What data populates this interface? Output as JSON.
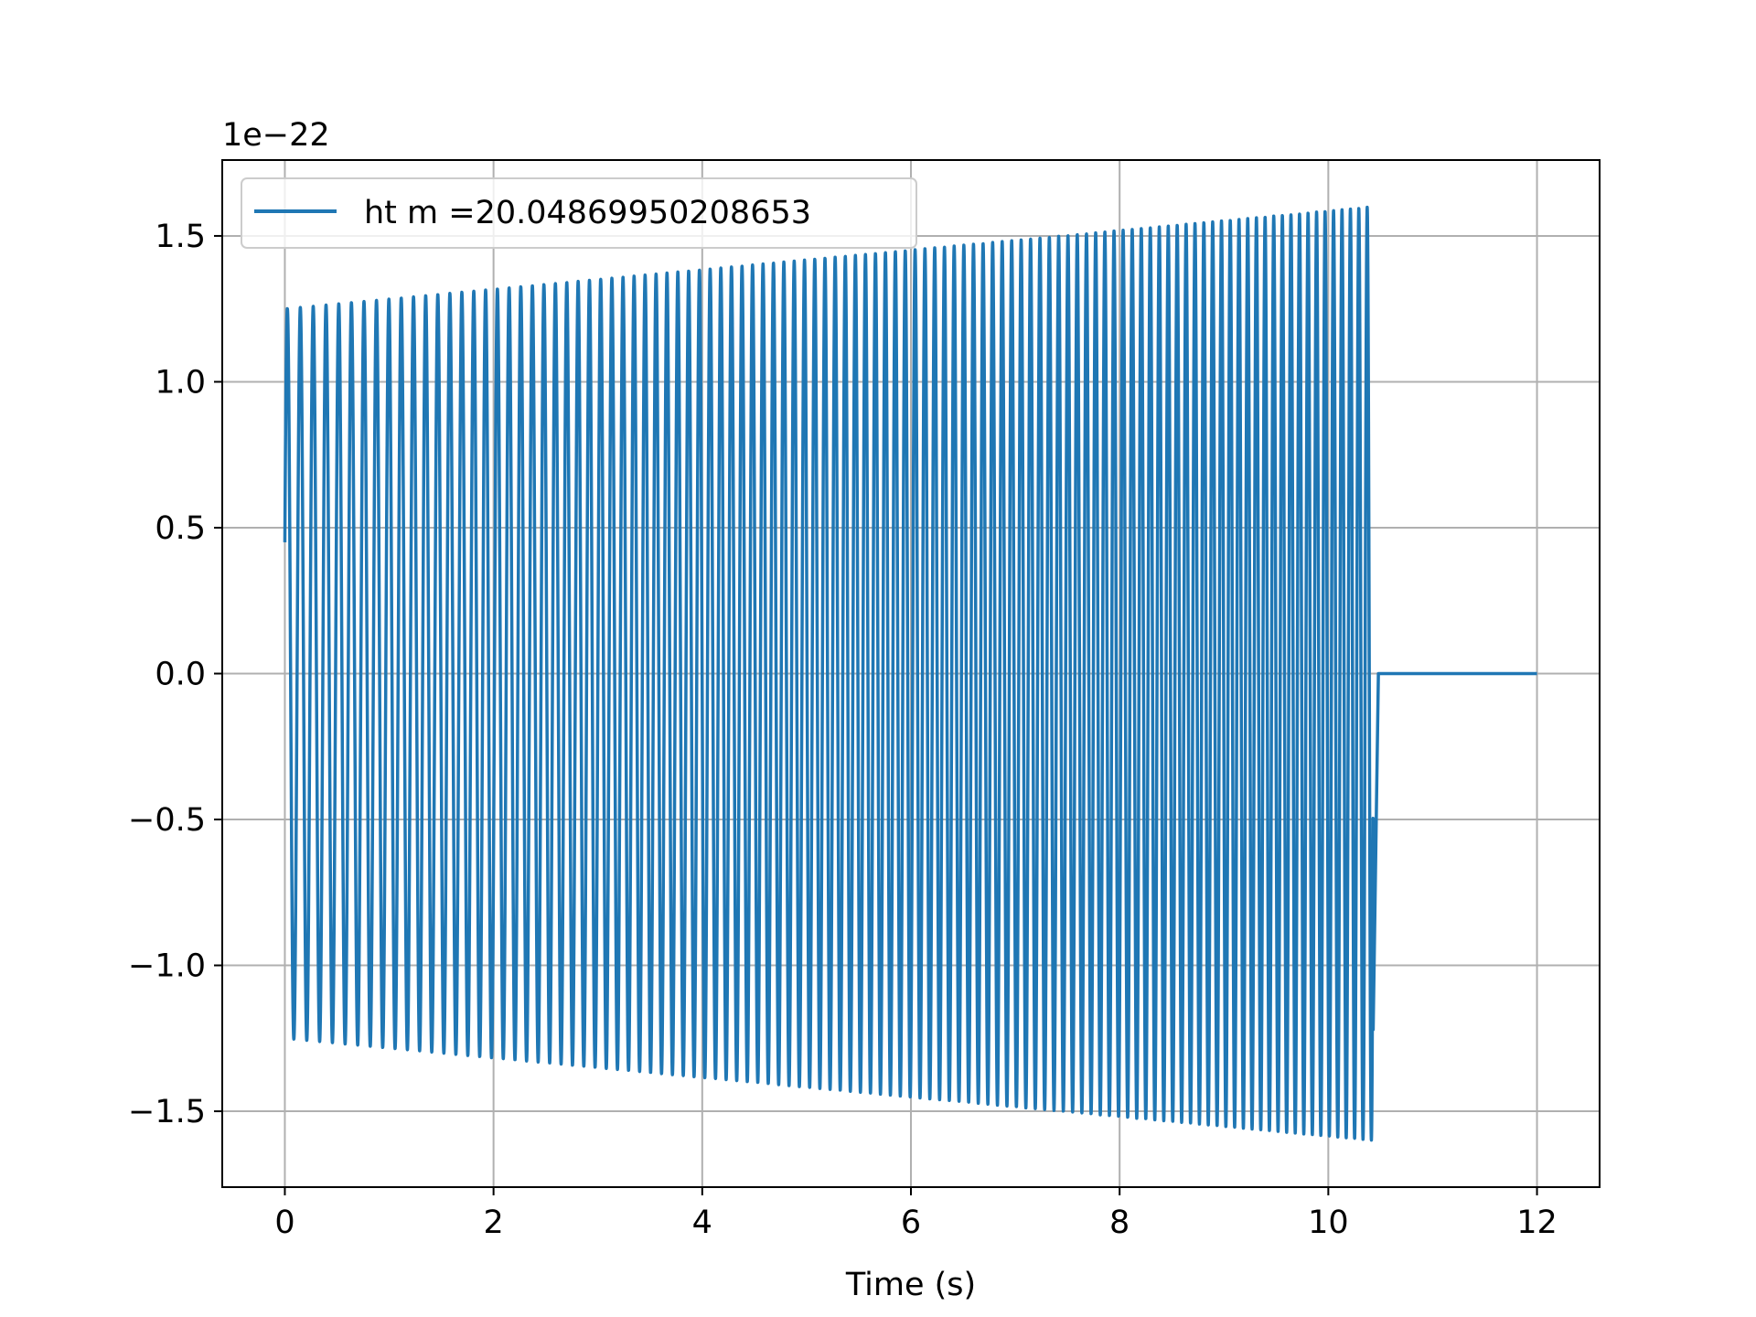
{
  "chart_data": {
    "type": "line",
    "title": "",
    "xlabel": "Time (s)",
    "ylabel": "",
    "y_offset_label": "1e−22",
    "xlim": [
      -0.6,
      12.6
    ],
    "ylim": [
      -1.76,
      1.76
    ],
    "x_ticks": [
      0,
      2,
      4,
      6,
      8,
      10,
      12
    ],
    "x_tick_labels": [
      "0",
      "2",
      "4",
      "6",
      "8",
      "10",
      "12"
    ],
    "y_ticks": [
      -1.5,
      -1.0,
      -0.5,
      0.0,
      0.5,
      1.0,
      1.5
    ],
    "y_tick_labels": [
      "−1.5",
      "−1.0",
      "−0.5",
      "0.0",
      "0.5",
      "1.0",
      "1.5"
    ],
    "grid": true,
    "legend_position": "top-left",
    "series": [
      {
        "name": "ht m =20.04869950208653",
        "color": "#1f77b4",
        "signal": {
          "start_time": 0.0,
          "end_time": 12.0,
          "signal_end_time": 10.43,
          "start_amplitude": 1.25,
          "end_amplitude": 1.6,
          "start_frequency": 8.0,
          "end_frequency": 12.5,
          "start_value": 0.45,
          "final_value": -1.22,
          "tail_value": 0.0
        }
      }
    ]
  }
}
